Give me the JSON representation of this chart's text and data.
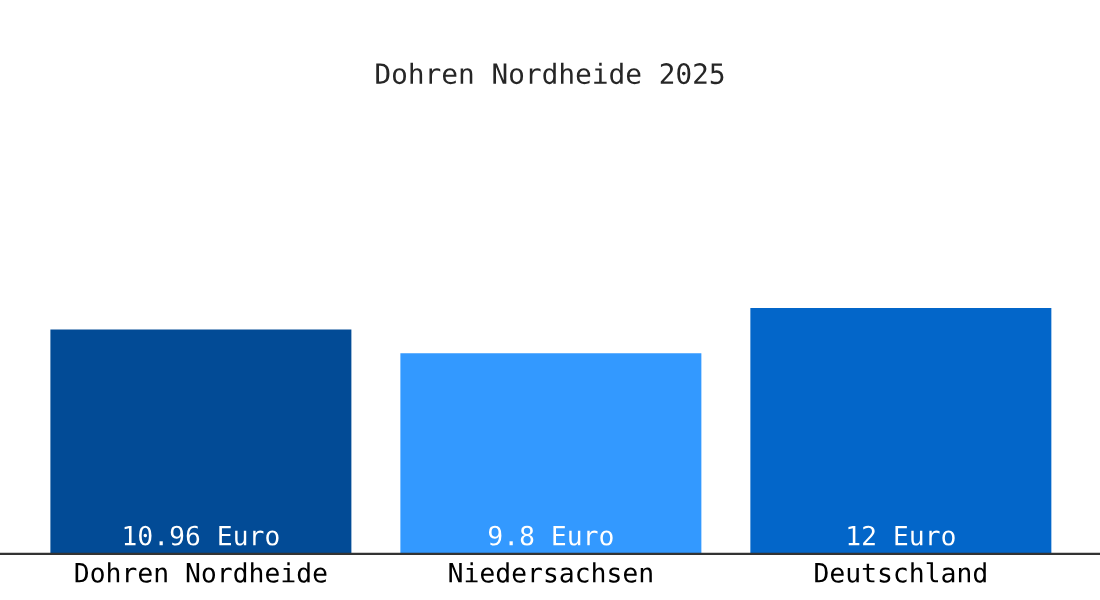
{
  "chart_data": {
    "type": "bar",
    "title": "Dohren Nordheide 2025",
    "categories": [
      "Dohren Nordheide",
      "Niedersachsen",
      "Deutschland"
    ],
    "values": [
      10.96,
      9.8,
      12
    ],
    "colors": [
      "#024b96",
      "#3399ff",
      "#0366c9"
    ],
    "value_labels": [
      "10.96 Euro",
      "9.8 Euro",
      "12 Euro"
    ],
    "data_labels": false
  }
}
